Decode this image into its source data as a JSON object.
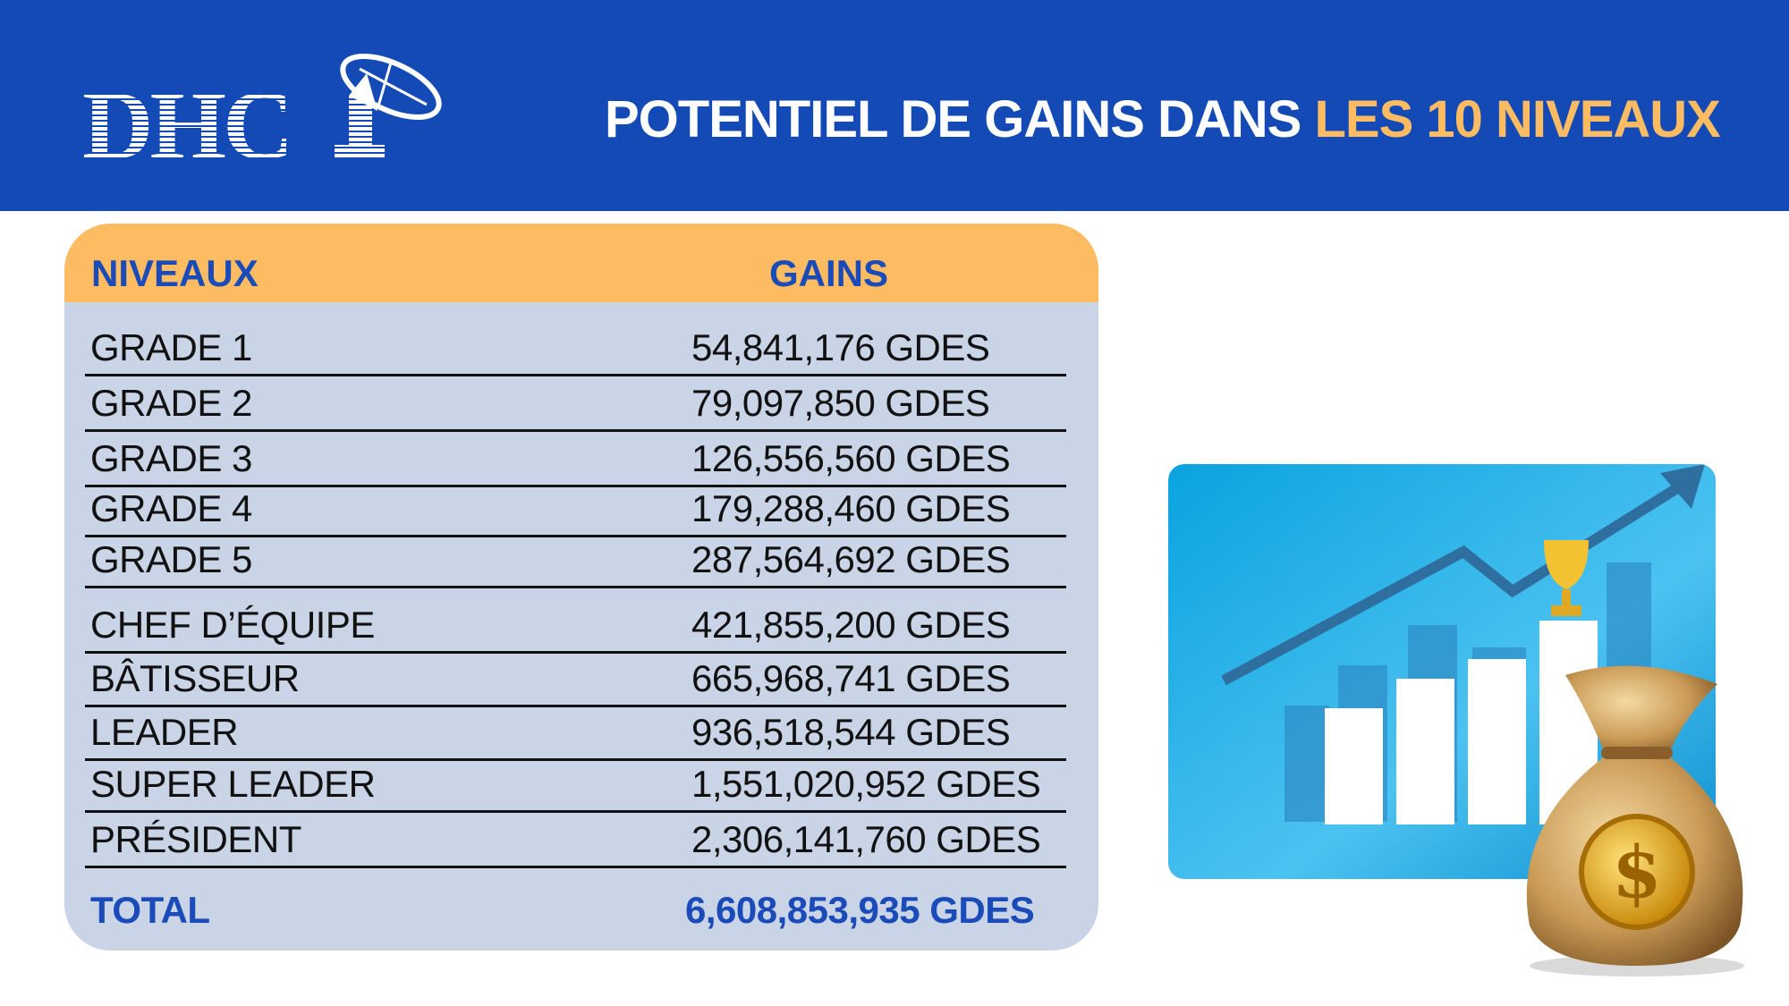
{
  "header": {
    "logo_text": "DHCP",
    "title_main": "POTENTIEL DE GAINS DANS ",
    "title_highlight": "LES 10 NIVEAUX"
  },
  "table": {
    "columns": [
      "NIVEAUX",
      "GAINS"
    ],
    "rows": [
      {
        "level": "GRADE 1",
        "gain": "54,841,176 GDES"
      },
      {
        "level": "GRADE 2",
        "gain": "79,097,850 GDES"
      },
      {
        "level": "GRADE 3",
        "gain": "126,556,560 GDES"
      },
      {
        "level": "GRADE 4",
        "gain": "179,288,460 GDES"
      },
      {
        "level": "GRADE 5",
        "gain": "287,564,692 GDES"
      },
      {
        "level": "CHEF D’ÉQUIPE",
        "gain": "421,855,200 GDES"
      },
      {
        "level": "BÂTISSEUR",
        "gain": "665,968,741 GDES"
      },
      {
        "level": "LEADER",
        "gain": "936,518,544 GDES"
      },
      {
        "level": "SUPER LEADER",
        "gain": "1,551,020,952 GDES"
      },
      {
        "level": "PRÉSIDENT",
        "gain": "2,306,141,760 GDES"
      }
    ],
    "total": {
      "label": "TOTAL",
      "gain": "6,608,853,935 GDES"
    }
  },
  "colors": {
    "brand_blue": "#134ab5",
    "accent_orange": "#fdbc62",
    "table_body": "#c9d4e6",
    "total_blue": "#1a4bb8"
  },
  "icons": [
    "satellite-dish-logo-icon",
    "growth-chart-illustration",
    "trophy-icon",
    "money-bag-icon"
  ]
}
